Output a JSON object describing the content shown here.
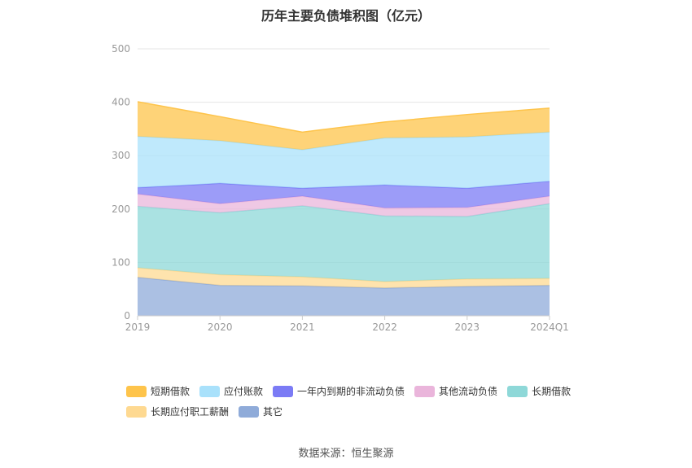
{
  "chart_data": {
    "type": "area",
    "stacked": true,
    "title": "历年主要负债堆积图（亿元）",
    "categories": [
      "2019",
      "2020",
      "2021",
      "2022",
      "2023",
      "2024Q1"
    ],
    "ylim": [
      0,
      500
    ],
    "yticks": [
      "0",
      "100",
      "200",
      "300",
      "400",
      "500"
    ],
    "grid": true,
    "legend_position": "bottom",
    "series": [
      {
        "name": "其它",
        "color": "#8fabd9",
        "values": [
          72,
          57,
          56,
          52,
          55,
          57
        ]
      },
      {
        "name": "长期应付职工薪酬",
        "color": "#fed991",
        "values": [
          18,
          20,
          17,
          12,
          14,
          13
        ]
      },
      {
        "name": "长期借款",
        "color": "#8ed8d8",
        "values": [
          115,
          116,
          133,
          123,
          117,
          140
        ]
      },
      {
        "name": "其他流动负债",
        "color": "#eab5db",
        "values": [
          23,
          17,
          18,
          15,
          17,
          14
        ]
      },
      {
        "name": "一年内到期的非流动负债",
        "color": "#7b7bf5",
        "values": [
          12,
          38,
          15,
          43,
          36,
          28
        ]
      },
      {
        "name": "应付账款",
        "color": "#a9e1fb",
        "values": [
          96,
          80,
          72,
          88,
          96,
          92
        ]
      },
      {
        "name": "短期借款",
        "color": "#fec44b",
        "values": [
          65,
          45,
          33,
          30,
          42,
          45
        ]
      }
    ],
    "legend_order": [
      "短期借款",
      "应付账款",
      "一年内到期的非流动负债",
      "其他流动负债",
      "长期借款",
      "长期应付职工薪酬",
      "其它"
    ]
  },
  "source": "数据来源：恒生聚源"
}
